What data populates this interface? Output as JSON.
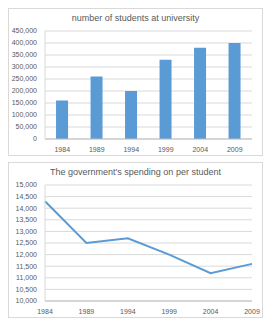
{
  "chart_data": [
    {
      "type": "bar",
      "title": "number of students at university",
      "categories": [
        "1984",
        "1989",
        "1994",
        "1999",
        "2004",
        "2009"
      ],
      "values": [
        160000,
        260000,
        200000,
        330000,
        380000,
        400000
      ],
      "color": "#5b9bd5",
      "ylim": [
        0,
        450000
      ],
      "yticks": [
        0,
        {
          "value": 50000,
          "label": "50,000"
        },
        {
          "value": 100000,
          "label": "100,000"
        },
        {
          "value": 150000,
          "label": "150,000"
        },
        {
          "value": 200000,
          "label": "200,000"
        },
        {
          "value": 250000,
          "label": "250,000"
        },
        {
          "value": 300000,
          "label": "300,000"
        },
        {
          "value": 350000,
          "label": "350,000"
        },
        {
          "value": 400000,
          "label": "400,000"
        },
        {
          "value": 450000,
          "label": "450,000"
        }
      ],
      "grid": true
    },
    {
      "type": "line",
      "title": "The government's spending on per student",
      "categories": [
        "1984",
        "1989",
        "1994",
        "1999",
        "2004",
        "2009"
      ],
      "values": [
        14300,
        12500,
        12700,
        12000,
        11200,
        11600
      ],
      "color": "#5b9bd5",
      "ylim": [
        10000,
        15000
      ],
      "yticks": [
        {
          "value": 10000,
          "label": "10,000"
        },
        {
          "value": 10500,
          "label": "10,500"
        },
        {
          "value": 11000,
          "label": "11,000"
        },
        {
          "value": 11500,
          "label": "11,500"
        },
        {
          "value": 12000,
          "label": "12,000"
        },
        {
          "value": 12500,
          "label": "12,500"
        },
        {
          "value": 13000,
          "label": "13,000"
        },
        {
          "value": 13500,
          "label": "13,500"
        },
        {
          "value": 14000,
          "label": "14,000"
        },
        {
          "value": 14500,
          "label": "14,500"
        },
        {
          "value": 15000,
          "label": "15,000"
        }
      ],
      "grid": true
    }
  ]
}
